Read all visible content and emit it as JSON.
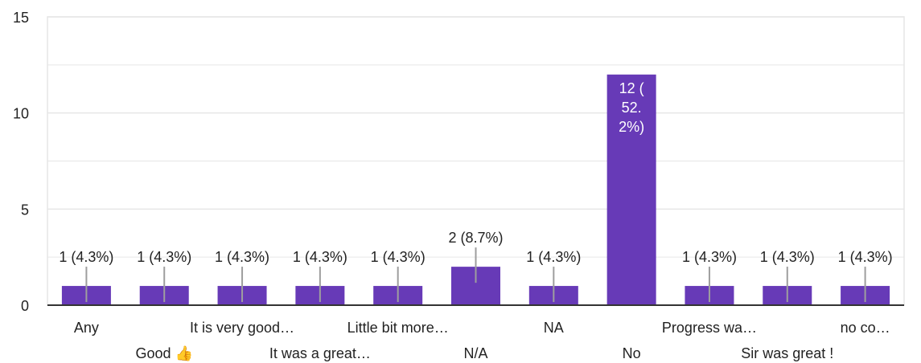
{
  "chart_data": {
    "type": "bar",
    "categories": [
      "Any",
      "Good 👍",
      "It is very good…",
      "It was a great…",
      "Little bit more…",
      "N/A",
      "NA",
      "No",
      "Progress wa…",
      "Sir was great !",
      "no co…"
    ],
    "values": [
      1,
      1,
      1,
      1,
      1,
      2,
      1,
      12,
      1,
      1,
      1
    ],
    "data_labels": [
      "1 (4.3%)",
      "1 (4.3%)",
      "1 (4.3%)",
      "1 (4.3%)",
      "1 (4.3%)",
      "2 (8.7%)",
      "1 (4.3%)",
      "12 (52.2%)",
      "1 (4.3%)",
      "1 (4.3%)",
      "1 (4.3%)"
    ],
    "yticks": [
      "0",
      "5",
      "10",
      "15"
    ],
    "ylim": [
      0,
      15
    ],
    "grid": true,
    "colors": {
      "bar": "#673ab7",
      "grid": "#e6e6e6",
      "axis": "#333333",
      "leader": "#9e9e9e"
    }
  }
}
